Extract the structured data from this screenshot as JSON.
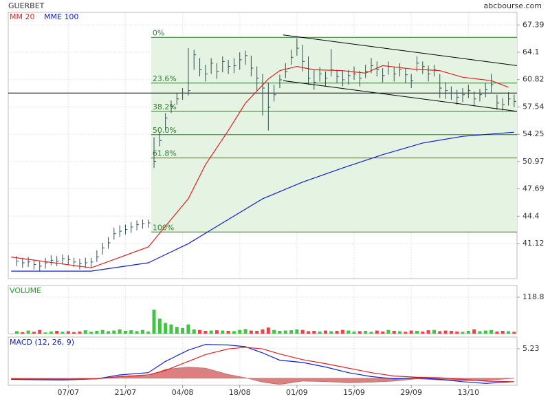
{
  "header": {
    "title": "GUERBET",
    "source": "abcbourse.com"
  },
  "chart_data": [
    {
      "type": "ohlc",
      "xlim": [
        -1.5,
        87.5
      ],
      "ylim": [
        36.9,
        68.9
      ],
      "yticks": [
        67.39,
        64.1,
        60.82,
        57.54,
        54.25,
        50.97,
        47.69,
        44.4,
        41.12
      ],
      "bar_color": "#2f4f4f",
      "close": [
        39.0,
        38.8,
        38.9,
        38.6,
        38.4,
        38.8,
        39.1,
        39.0,
        39.3,
        39.2,
        38.9,
        38.7,
        38.8,
        38.9,
        39.5,
        40.6,
        41.2,
        42.3,
        42.6,
        42.8,
        43.1,
        43.4,
        43.5,
        43.6,
        51.0,
        53.5,
        56.2,
        57.6,
        58.5,
        59.2,
        59.5,
        63.8,
        62.0,
        61.5,
        62.8,
        61.8,
        63.0,
        62.4,
        62.5,
        63.2,
        63.7,
        62.2,
        61.0,
        59.8,
        57.5,
        59.0,
        60.8,
        61.8,
        63.5,
        64.6,
        63.0,
        61.0,
        60.5,
        61.5,
        61.0,
        62.0,
        61.2,
        60.8,
        61.3,
        61.5,
        61.0,
        61.8,
        62.5,
        62.0,
        61.3,
        62.4,
        61.5,
        62.0,
        61.4,
        60.7,
        62.8,
        62.4,
        61.5,
        62.0,
        59.8,
        59.5,
        59.2,
        58.7,
        59.0,
        59.5,
        58.5,
        59.0,
        59.6,
        60.2,
        58.0,
        57.8,
        58.5,
        58.2
      ],
      "high": [
        39.6,
        39.4,
        39.5,
        39.2,
        39.0,
        39.4,
        39.7,
        39.6,
        39.8,
        39.7,
        39.4,
        39.3,
        39.4,
        39.4,
        40.3,
        41.2,
        41.9,
        43.0,
        43.3,
        43.4,
        43.7,
        43.9,
        44.0,
        44.0,
        53.9,
        54.5,
        56.8,
        58.3,
        59.2,
        59.8,
        64.6,
        64.4,
        63.4,
        62.6,
        63.4,
        62.8,
        63.6,
        63.2,
        63.4,
        64.1,
        64.3,
        63.7,
        62.4,
        61.5,
        60.5,
        60.2,
        61.4,
        62.8,
        64.4,
        65.8,
        65.0,
        63.6,
        62.0,
        62.3,
        61.8,
        64.5,
        62.0,
        61.9,
        62.0,
        62.4,
        61.9,
        62.6,
        63.4,
        63.0,
        62.2,
        63.0,
        62.3,
        62.8,
        62.2,
        61.5,
        63.6,
        63.0,
        62.5,
        62.6,
        61.5,
        60.5,
        60.0,
        59.6,
        59.8,
        60.2,
        59.4,
        59.7,
        60.4,
        61.5,
        59.0,
        58.6,
        59.3,
        59.0
      ],
      "low": [
        38.4,
        38.2,
        38.3,
        38.0,
        37.8,
        38.1,
        38.5,
        38.4,
        38.6,
        38.5,
        38.3,
        38.0,
        38.2,
        38.2,
        38.9,
        39.8,
        40.5,
        41.6,
        41.9,
        42.2,
        42.4,
        42.7,
        42.9,
        43.0,
        50.2,
        52.8,
        54.8,
        56.8,
        57.8,
        58.4,
        58.9,
        62.0,
        61.2,
        60.6,
        61.5,
        60.9,
        61.7,
        61.5,
        61.6,
        62.0,
        62.6,
        61.2,
        59.5,
        56.5,
        54.7,
        58.2,
        59.8,
        61.0,
        62.6,
        63.7,
        61.8,
        60.2,
        59.6,
        60.6,
        60.0,
        61.2,
        60.4,
        60.0,
        60.2,
        60.8,
        60.0,
        61.0,
        61.6,
        61.2,
        60.5,
        61.4,
        60.6,
        61.2,
        60.4,
        59.8,
        61.8,
        61.5,
        60.6,
        61.2,
        58.6,
        58.5,
        58.4,
        57.8,
        58.1,
        58.6,
        57.6,
        58.2,
        58.7,
        59.2,
        57.2,
        57.1,
        57.7,
        57.5
      ],
      "series": [
        {
          "name": "MM 20",
          "color": "#e02020",
          "x": [
            -1,
            13,
            23,
            26,
            30,
            33,
            37,
            40,
            44,
            46,
            49,
            52,
            57,
            61,
            64,
            69,
            74,
            78,
            83,
            86
          ],
          "values": [
            39.5,
            38.2,
            40.7,
            43.2,
            46.5,
            50.6,
            54.7,
            58.0,
            60.9,
            61.9,
            62.4,
            62.0,
            61.9,
            61.6,
            62.5,
            62.1,
            61.9,
            61.1,
            60.7,
            59.9
          ]
        },
        {
          "name": "MME 100",
          "color": "#1020d0",
          "x": [
            -1,
            13,
            23,
            30,
            36,
            43,
            50,
            57,
            64,
            71,
            78,
            87
          ],
          "values": [
            37.8,
            37.8,
            38.8,
            41.1,
            43.6,
            46.5,
            48.5,
            50.2,
            51.8,
            53.2,
            54.0,
            54.5
          ]
        }
      ],
      "reference_line": 59.2,
      "fibonacci": {
        "start_x": 23.5,
        "color": "#2e7d2e",
        "fill": "#e4f3e2",
        "levels": [
          {
            "value": 65.9,
            "label": "0%"
          },
          {
            "value": 60.4,
            "label": "23.6%"
          },
          {
            "value": 57.0,
            "label": "38.2%"
          },
          {
            "value": 54.2,
            "label": "50.0%"
          },
          {
            "value": 51.4,
            "label": "61.8%"
          },
          {
            "value": 42.5,
            "label": "100%"
          }
        ]
      },
      "trendlines": [
        {
          "x": [
            46.6,
            87.5
          ],
          "values": [
            66.2,
            62.5
          ]
        },
        {
          "x": [
            46.6,
            87.5
          ],
          "values": [
            60.7,
            57.0
          ]
        }
      ]
    },
    {
      "type": "volume",
      "title": "VOLUME",
      "title_color": "#2a9a2a",
      "xlim": [
        -1.5,
        87.5
      ],
      "ylim": [
        0,
        157
      ],
      "yticks": [
        118.8
      ],
      "up_color": "#44c244",
      "down_color": "#e04848",
      "values": [
        8,
        5,
        10,
        6,
        12,
        4,
        7,
        9,
        6,
        8,
        5,
        7,
        11,
        6,
        9,
        12,
        8,
        10,
        14,
        9,
        11,
        8,
        12,
        7,
        78,
        49,
        35,
        30,
        22,
        18,
        30,
        14,
        12,
        9,
        10,
        11,
        10,
        9,
        8,
        12,
        15,
        10,
        9,
        14,
        20,
        12,
        9,
        10,
        11,
        14,
        12,
        8,
        9,
        7,
        10,
        8,
        9,
        12,
        10,
        7,
        8,
        9,
        6,
        10,
        7,
        12,
        9,
        8,
        6,
        10,
        9,
        7,
        11,
        12,
        8,
        10,
        9,
        7,
        6,
        9,
        14,
        8,
        10,
        12,
        7,
        9,
        8,
        6
      ]
    },
    {
      "type": "macd",
      "title": "MACD (12, 26, 9)",
      "title_color": "#1020a0",
      "xlim": [
        -1.5,
        87.5
      ],
      "ylim": [
        -1.23,
        7.3
      ],
      "yticks": [
        5.23
      ],
      "xticks": [
        {
          "value": 9,
          "label": "07/07"
        },
        {
          "value": 19,
          "label": "21/07"
        },
        {
          "value": 29,
          "label": "04/08"
        },
        {
          "value": 39,
          "label": "18/08"
        },
        {
          "value": 49,
          "label": "01/09"
        },
        {
          "value": 59,
          "label": "15/09"
        },
        {
          "value": 69,
          "label": "29/09"
        },
        {
          "value": 79,
          "label": "13/10"
        }
      ],
      "x": [
        -1,
        8,
        14,
        18,
        23,
        26,
        30,
        33,
        37,
        40,
        43,
        46,
        50,
        54,
        58,
        62,
        66,
        70,
        74,
        78,
        82,
        87
      ],
      "macd": {
        "color": "#1020d0",
        "values": [
          -0.2,
          -0.3,
          -0.1,
          0.6,
          1.0,
          3.0,
          5.0,
          6.0,
          5.9,
          5.6,
          4.5,
          3.2,
          2.8,
          2.0,
          1.0,
          0.3,
          -0.1,
          0.1,
          -0.2,
          -0.6,
          -0.9,
          -0.6
        ]
      },
      "signal": {
        "color": "#e02020",
        "values": [
          -0.1,
          -0.2,
          -0.1,
          0.3,
          0.6,
          1.4,
          3.0,
          4.2,
          5.2,
          5.5,
          5.2,
          4.3,
          3.3,
          2.6,
          1.8,
          1.0,
          0.4,
          0.2,
          0.1,
          -0.2,
          -0.5,
          -0.6
        ]
      },
      "histogram": {
        "color": "#d98080",
        "values": [
          -0.1,
          -0.1,
          0,
          0.3,
          0.4,
          1.6,
          2.0,
          1.8,
          0.7,
          0.1,
          -0.7,
          -1.1,
          -0.5,
          -0.6,
          -0.8,
          -0.7,
          -0.5,
          -0.1,
          -0.3,
          -0.4,
          -0.4,
          0
        ]
      }
    }
  ]
}
